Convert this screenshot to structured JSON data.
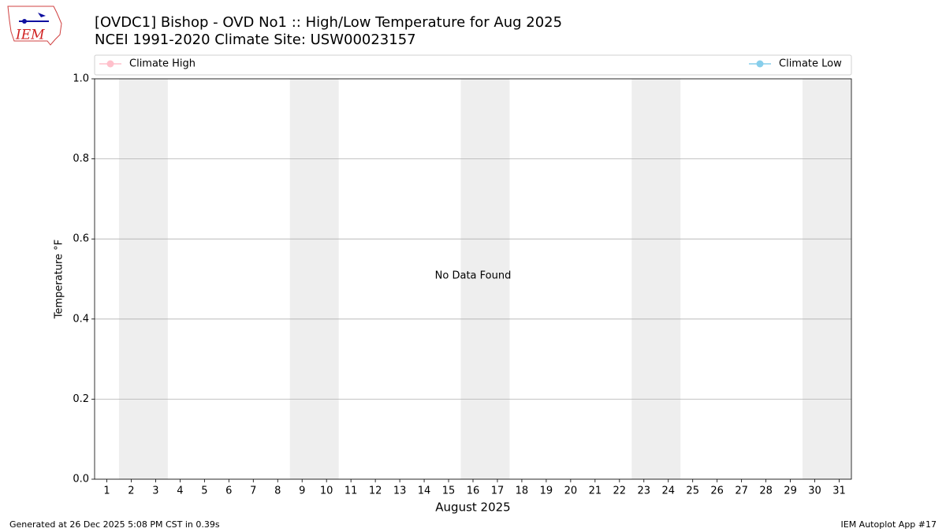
{
  "logo": "IEM",
  "chart_data": {
    "type": "line",
    "title": "[OVDC1] Bishop - OVD No1 :: High/Low Temperature for Aug 2025",
    "subtitle": "NCEI 1991-2020 Climate Site: USW00023157",
    "x_label": "August 2025",
    "y_label": "Temperature °F",
    "annotation": "No Data Found",
    "x": [
      1,
      2,
      3,
      4,
      5,
      6,
      7,
      8,
      9,
      10,
      11,
      12,
      13,
      14,
      15,
      16,
      17,
      18,
      19,
      20,
      21,
      22,
      23,
      24,
      25,
      26,
      27,
      28,
      29,
      30,
      31
    ],
    "series": [
      {
        "name": "Climate High",
        "color": "#ffc0cb",
        "values": [
          null,
          null,
          null,
          null,
          null,
          null,
          null,
          null,
          null,
          null,
          null,
          null,
          null,
          null,
          null,
          null,
          null,
          null,
          null,
          null,
          null,
          null,
          null,
          null,
          null,
          null,
          null,
          null,
          null,
          null,
          null
        ]
      },
      {
        "name": "Climate Low",
        "color": "#87ceeb",
        "values": [
          null,
          null,
          null,
          null,
          null,
          null,
          null,
          null,
          null,
          null,
          null,
          null,
          null,
          null,
          null,
          null,
          null,
          null,
          null,
          null,
          null,
          null,
          null,
          null,
          null,
          null,
          null,
          null,
          null,
          null,
          null
        ]
      }
    ],
    "xlim": [
      0.5,
      31.5
    ],
    "xticks": [
      1,
      2,
      3,
      4,
      5,
      6,
      7,
      8,
      9,
      10,
      11,
      12,
      13,
      14,
      15,
      16,
      17,
      18,
      19,
      20,
      21,
      22,
      23,
      24,
      25,
      26,
      27,
      28,
      29,
      30,
      31
    ],
    "ylim": [
      0,
      1
    ],
    "yticks": [
      {
        "value": 0,
        "label": "0.0"
      },
      {
        "value": 0.2,
        "label": "0.2"
      },
      {
        "value": 0.4,
        "label": "0.4"
      },
      {
        "value": 0.6,
        "label": "0.6"
      },
      {
        "value": 0.8,
        "label": "0.8"
      },
      {
        "value": 1,
        "label": "1.0"
      }
    ],
    "shading": [
      [
        1.5,
        3.5
      ],
      [
        8.5,
        10.5
      ],
      [
        15.5,
        17.5
      ],
      [
        22.5,
        24.5
      ],
      [
        29.5,
        31.5
      ]
    ],
    "shading_color": "#eeeeee",
    "grid": true
  },
  "footer": {
    "left": "Generated at 26 Dec 2025 5:08 PM CST in 0.39s",
    "right": "IEM Autoplot App #17"
  }
}
